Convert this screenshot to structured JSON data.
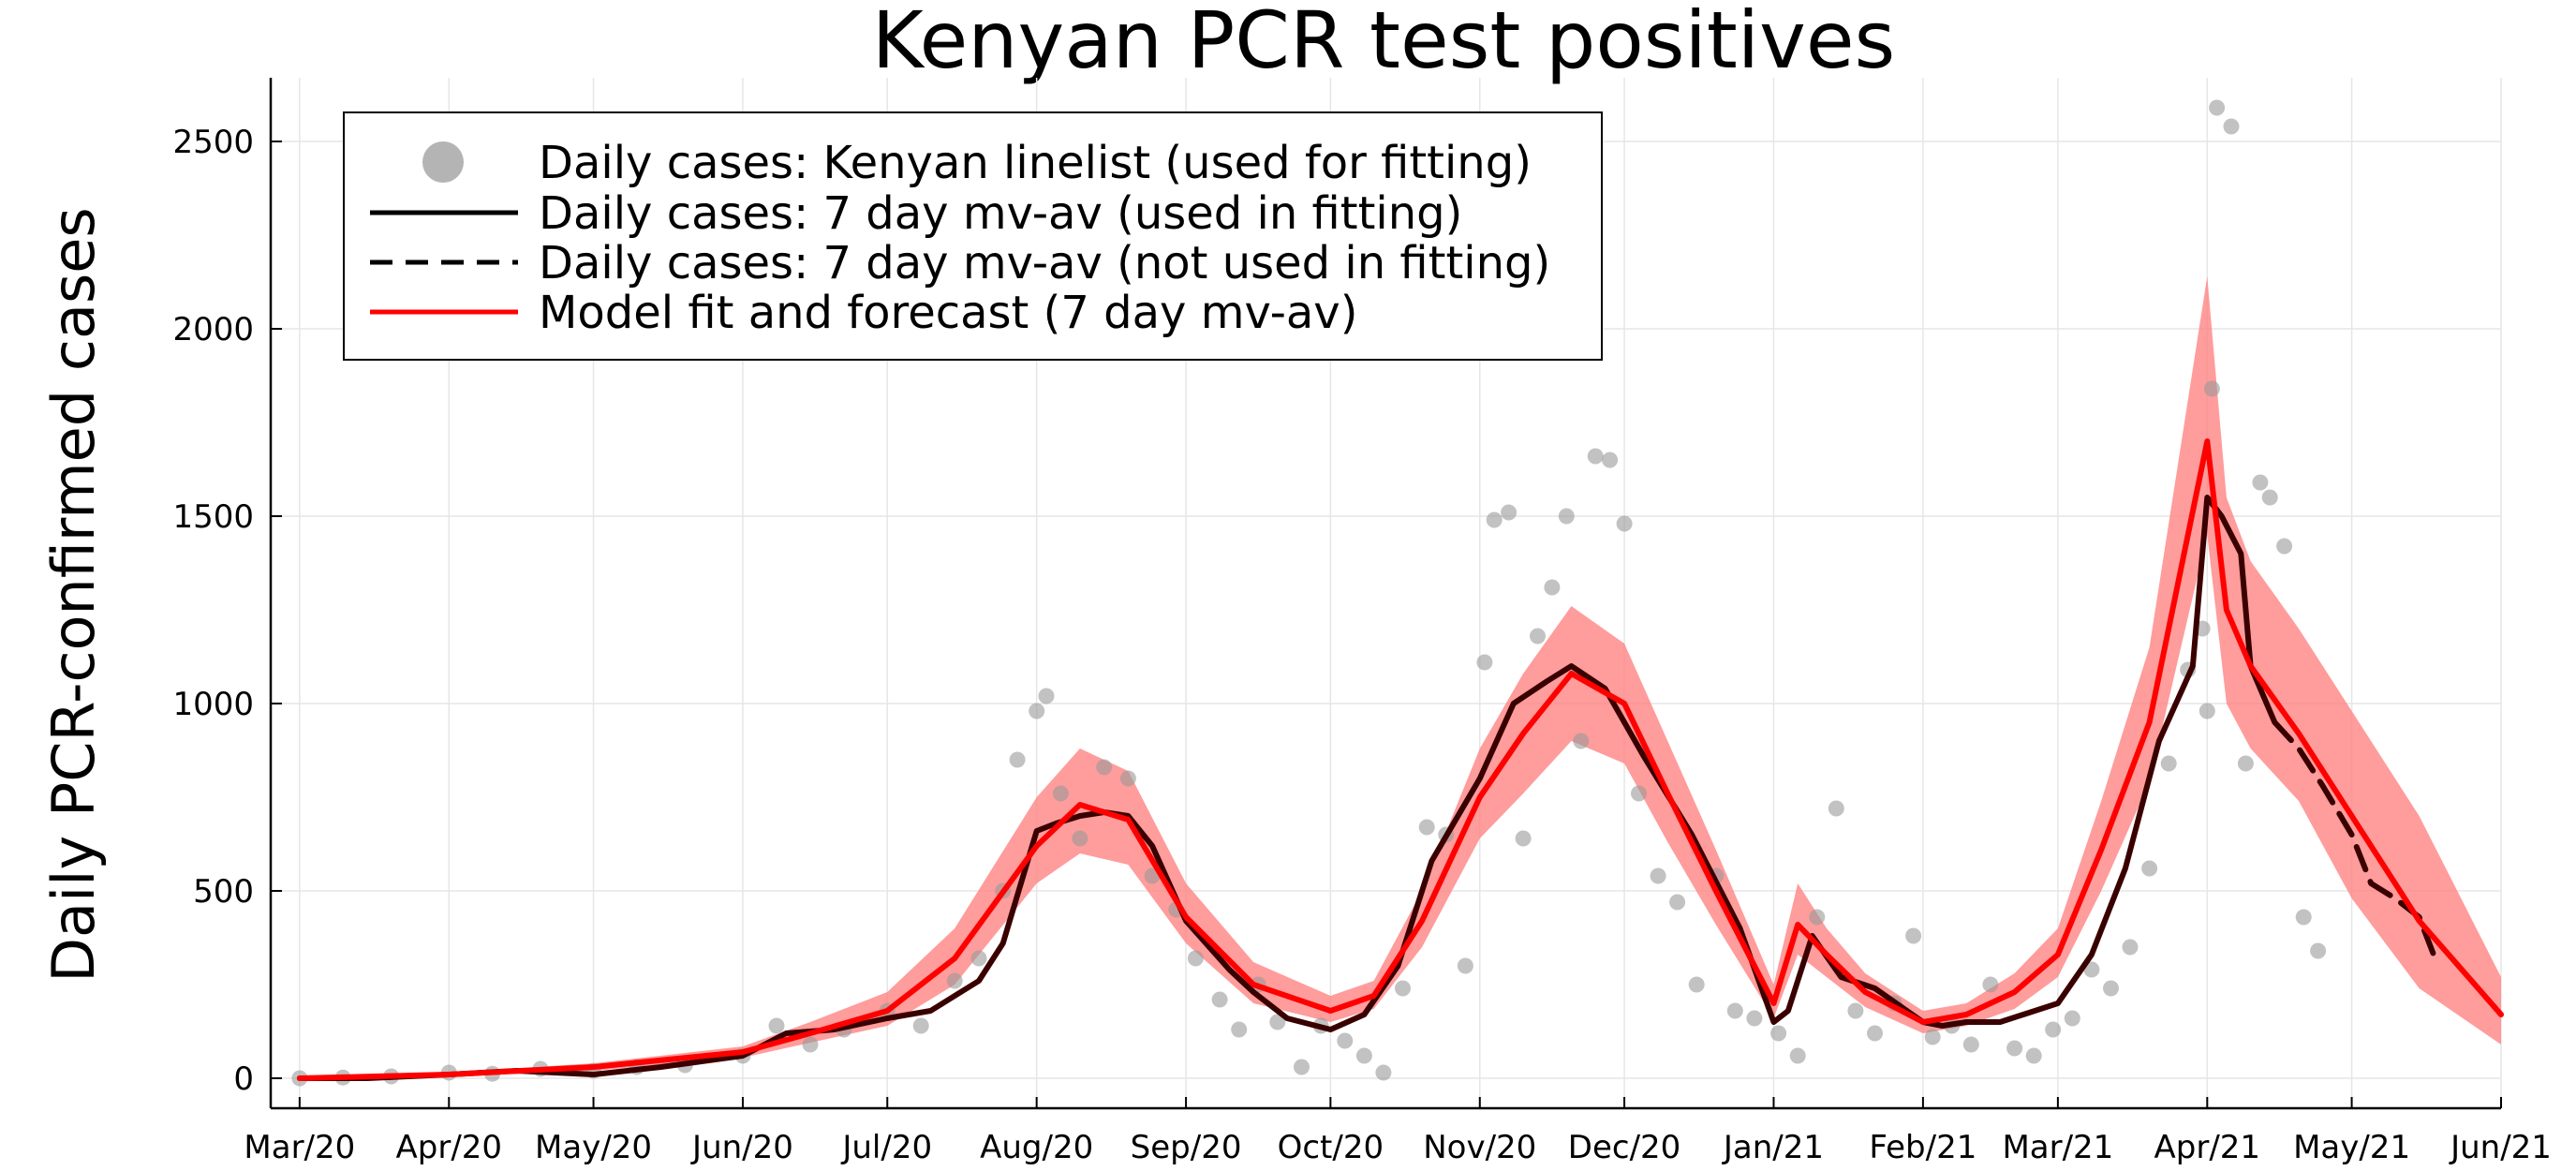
{
  "chart_data": {
    "type": "line",
    "title": "Kenyan PCR test positives",
    "xlabel": "",
    "ylabel": "Daily PCR-confirmed cases",
    "x_start": "2020-02-24",
    "xlim": [
      "2020-02-24",
      "2021-06-01"
    ],
    "ylim": [
      -80,
      2670
    ],
    "x_ticks": [
      "Mar/20",
      "Apr/20",
      "May/20",
      "Jun/20",
      "Jul/20",
      "Aug/20",
      "Sep/20",
      "Oct/20",
      "Nov/20",
      "Dec/20",
      "Jan/21",
      "Feb/21",
      "Mar/21",
      "Apr/21",
      "May/21",
      "Jun/21"
    ],
    "x_tick_dates": [
      "2020-03-01",
      "2020-04-01",
      "2020-05-01",
      "2020-06-01",
      "2020-07-01",
      "2020-08-01",
      "2020-09-01",
      "2020-10-01",
      "2020-11-01",
      "2020-12-01",
      "2021-01-01",
      "2021-02-01",
      "2021-03-01",
      "2021-04-01",
      "2021-05-01",
      "2021-06-01"
    ],
    "y_ticks": [
      0,
      500,
      1000,
      1500,
      2000,
      2500
    ],
    "grid": true,
    "legend_position": "top-left",
    "legend": [
      "Daily cases: Kenyan linelist (used for fitting)",
      "Daily cases: 7 day mv-av (used in fitting)",
      "Daily cases: 7 day mv-av (not used in fitting)",
      "Model fit and forecast (7 day mv-av)"
    ],
    "colors": {
      "points": "#9a9a9a",
      "observed_line": "#000000",
      "model_line": "#ff0000",
      "model_band": "#ff8080"
    },
    "series": [
      {
        "name": "Daily cases: 7 day mv-av (used in fitting)",
        "style": "solid",
        "x": [
          "2020-03-01",
          "2020-03-15",
          "2020-04-01",
          "2020-04-15",
          "2020-05-01",
          "2020-05-15",
          "2020-06-01",
          "2020-06-10",
          "2020-06-20",
          "2020-07-01",
          "2020-07-10",
          "2020-07-20",
          "2020-07-25",
          "2020-08-01",
          "2020-08-05",
          "2020-08-10",
          "2020-08-15",
          "2020-08-20",
          "2020-08-25",
          "2020-09-01",
          "2020-09-10",
          "2020-09-15",
          "2020-09-22",
          "2020-10-01",
          "2020-10-08",
          "2020-10-15",
          "2020-10-22",
          "2020-11-01",
          "2020-11-08",
          "2020-11-15",
          "2020-11-20",
          "2020-11-27",
          "2020-12-05",
          "2020-12-15",
          "2020-12-25",
          "2021-01-01",
          "2021-01-04",
          "2021-01-09",
          "2021-01-15",
          "2021-01-22",
          "2021-02-01",
          "2021-02-05",
          "2021-02-10",
          "2021-02-17",
          "2021-03-01",
          "2021-03-08",
          "2021-03-15",
          "2021-03-22",
          "2021-03-29",
          "2021-04-01",
          "2021-04-04",
          "2021-04-08",
          "2021-04-10",
          "2021-04-15"
        ],
        "y": [
          0,
          0,
          10,
          20,
          10,
          30,
          60,
          120,
          130,
          160,
          180,
          260,
          360,
          660,
          680,
          700,
          710,
          700,
          620,
          420,
          290,
          230,
          160,
          130,
          170,
          300,
          580,
          800,
          1000,
          1060,
          1100,
          1040,
          860,
          650,
          400,
          150,
          180,
          380,
          270,
          240,
          150,
          140,
          150,
          150,
          200,
          330,
          560,
          900,
          1100,
          1550,
          1500,
          1400,
          1100,
          950
        ]
      },
      {
        "name": "Daily cases: 7 day mv-av (not used in fitting)",
        "style": "dashed",
        "x": [
          "2021-04-15",
          "2021-04-20",
          "2021-04-25",
          "2021-05-01",
          "2021-05-05",
          "2021-05-10",
          "2021-05-15",
          "2021-05-18"
        ],
        "y": [
          950,
          880,
          780,
          650,
          520,
          480,
          430,
          330
        ]
      },
      {
        "name": "Model fit and forecast (7 day mv-av)",
        "style": "solid",
        "x": [
          "2020-03-01",
          "2020-04-01",
          "2020-05-01",
          "2020-06-01",
          "2020-06-15",
          "2020-07-01",
          "2020-07-15",
          "2020-08-01",
          "2020-08-10",
          "2020-08-20",
          "2020-09-01",
          "2020-09-15",
          "2020-10-01",
          "2020-10-10",
          "2020-10-20",
          "2020-11-01",
          "2020-11-10",
          "2020-11-20",
          "2020-12-01",
          "2020-12-10",
          "2020-12-20",
          "2021-01-01",
          "2021-01-06",
          "2021-01-12",
          "2021-01-20",
          "2021-02-01",
          "2021-02-10",
          "2021-02-20",
          "2021-03-01",
          "2021-03-10",
          "2021-03-20",
          "2021-04-01",
          "2021-04-05",
          "2021-04-10",
          "2021-04-20",
          "2021-05-01",
          "2021-05-15",
          "2021-06-01"
        ],
        "y": [
          0,
          10,
          30,
          70,
          120,
          180,
          320,
          620,
          730,
          690,
          430,
          250,
          180,
          220,
          420,
          750,
          920,
          1080,
          1000,
          760,
          500,
          200,
          410,
          330,
          230,
          150,
          170,
          230,
          330,
          610,
          950,
          1700,
          1250,
          1100,
          920,
          700,
          420,
          170
        ]
      }
    ],
    "model_band": {
      "name": "Model fit and forecast (7 day mv-av)",
      "x": [
        "2020-03-01",
        "2020-04-01",
        "2020-05-01",
        "2020-06-01",
        "2020-06-15",
        "2020-07-01",
        "2020-07-15",
        "2020-08-01",
        "2020-08-10",
        "2020-08-20",
        "2020-09-01",
        "2020-09-15",
        "2020-10-01",
        "2020-10-10",
        "2020-10-20",
        "2020-11-01",
        "2020-11-10",
        "2020-11-20",
        "2020-12-01",
        "2020-12-10",
        "2020-12-20",
        "2021-01-01",
        "2021-01-06",
        "2021-01-12",
        "2021-01-20",
        "2021-02-01",
        "2021-02-10",
        "2021-02-20",
        "2021-03-01",
        "2021-03-10",
        "2021-03-20",
        "2021-04-01",
        "2021-04-05",
        "2021-04-10",
        "2021-04-20",
        "2021-05-01",
        "2021-05-15",
        "2021-06-01"
      ],
      "low": [
        0,
        5,
        20,
        55,
        95,
        140,
        250,
        520,
        600,
        570,
        360,
        200,
        150,
        185,
        350,
        640,
        760,
        900,
        840,
        630,
        410,
        160,
        330,
        270,
        190,
        120,
        140,
        185,
        270,
        500,
        790,
        1450,
        1000,
        880,
        740,
        480,
        240,
        90
      ],
      "high": [
        0,
        15,
        40,
        85,
        150,
        230,
        400,
        750,
        880,
        820,
        520,
        310,
        220,
        260,
        500,
        880,
        1080,
        1260,
        1160,
        900,
        610,
        250,
        520,
        400,
        280,
        180,
        200,
        280,
        400,
        740,
        1150,
        2140,
        1550,
        1380,
        1200,
        980,
        700,
        270
      ]
    },
    "scatter": {
      "name": "Daily cases: Kenyan linelist (used for fitting)",
      "x": [
        "2020-03-01",
        "2020-03-10",
        "2020-03-20",
        "2020-04-01",
        "2020-04-10",
        "2020-04-20",
        "2020-05-01",
        "2020-05-10",
        "2020-05-20",
        "2020-06-01",
        "2020-06-08",
        "2020-06-15",
        "2020-06-22",
        "2020-07-01",
        "2020-07-08",
        "2020-07-15",
        "2020-07-20",
        "2020-07-25",
        "2020-07-28",
        "2020-08-01",
        "2020-08-03",
        "2020-08-06",
        "2020-08-10",
        "2020-08-15",
        "2020-08-20",
        "2020-08-25",
        "2020-08-30",
        "2020-09-03",
        "2020-09-08",
        "2020-09-12",
        "2020-09-16",
        "2020-09-20",
        "2020-09-25",
        "2020-09-29",
        "2020-10-04",
        "2020-10-08",
        "2020-10-12",
        "2020-10-16",
        "2020-10-21",
        "2020-10-25",
        "2020-10-29",
        "2020-11-02",
        "2020-11-04",
        "2020-11-07",
        "2020-11-10",
        "2020-11-13",
        "2020-11-16",
        "2020-11-19",
        "2020-11-22",
        "2020-11-25",
        "2020-11-28",
        "2020-12-01",
        "2020-12-04",
        "2020-12-08",
        "2020-12-12",
        "2020-12-16",
        "2020-12-20",
        "2020-12-24",
        "2020-12-28",
        "2021-01-02",
        "2021-01-06",
        "2021-01-10",
        "2021-01-14",
        "2021-01-18",
        "2021-01-22",
        "2021-01-26",
        "2021-01-30",
        "2021-02-03",
        "2021-02-07",
        "2021-02-11",
        "2021-02-15",
        "2021-02-20",
        "2021-02-24",
        "2021-02-28",
        "2021-03-04",
        "2021-03-08",
        "2021-03-12",
        "2021-03-16",
        "2021-03-20",
        "2021-03-24",
        "2021-03-28",
        "2021-03-31",
        "2021-04-01",
        "2021-04-02",
        "2021-04-03",
        "2021-04-06",
        "2021-04-09",
        "2021-04-12",
        "2021-04-14",
        "2021-04-17",
        "2021-04-21",
        "2021-04-24"
      ],
      "y": [
        0,
        2,
        5,
        15,
        12,
        25,
        20,
        30,
        35,
        60,
        140,
        90,
        130,
        180,
        140,
        260,
        320,
        500,
        850,
        980,
        1020,
        760,
        640,
        830,
        800,
        540,
        450,
        320,
        210,
        130,
        250,
        150,
        30,
        140,
        100,
        60,
        15,
        240,
        670,
        650,
        300,
        1110,
        1490,
        1510,
        640,
        1180,
        1310,
        1500,
        900,
        1660,
        1650,
        1480,
        760,
        540,
        470,
        250,
        540,
        180,
        160,
        120,
        60,
        430,
        720,
        180,
        120,
        200,
        380,
        110,
        140,
        90,
        250,
        80,
        60,
        130,
        160,
        290,
        240,
        350,
        560,
        840,
        1090,
        1200,
        980,
        1840,
        2590,
        2540,
        840,
        1590,
        1550,
        1420,
        430,
        340
      ]
    }
  }
}
